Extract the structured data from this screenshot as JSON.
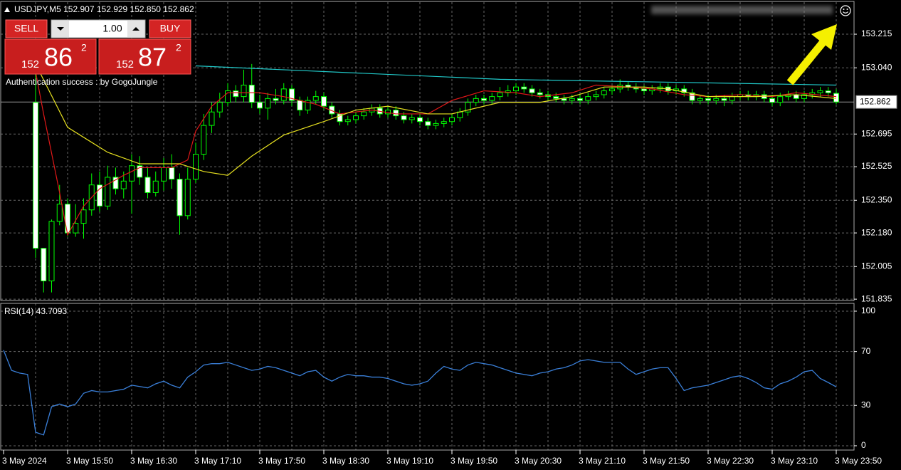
{
  "chart_data": {
    "type": "candlestick",
    "title": "USDJPY,M5  152.907 152.929 152.850 152.862",
    "categories": [
      "3 May 2024",
      null,
      null,
      null,
      null,
      null,
      null,
      null,
      "3 May 15:50",
      null,
      null,
      null,
      null,
      null,
      null,
      null,
      "3 May 16:30",
      null,
      null,
      null,
      null,
      null,
      null,
      null,
      "3 May 17:10",
      null,
      null,
      null,
      null,
      null,
      null,
      null,
      "3 May 17:50",
      null,
      null,
      null,
      null,
      null,
      null,
      null,
      "3 May 18:30",
      null,
      null,
      null,
      null,
      null,
      null,
      null,
      "3 May 19:10",
      null,
      null,
      null,
      null,
      null,
      null,
      null,
      "3 May 19:50",
      null,
      null,
      null,
      null,
      null,
      null,
      null,
      "3 May 20:30",
      null,
      null,
      null,
      null,
      null,
      null,
      null,
      "3 May 21:10",
      null,
      null,
      null,
      null,
      null,
      null,
      null,
      "3 May 21:50",
      null,
      null,
      null,
      null,
      null,
      null,
      null,
      "3 May 22:30",
      null,
      null,
      null,
      null,
      null,
      null,
      null,
      "3 May 23:10",
      null,
      null,
      null,
      null,
      null,
      null,
      null,
      "3 May 23:50"
    ],
    "open": [
      null,
      null,
      null,
      null,
      152.86,
      152.1,
      151.93,
      152.24,
      152.33,
      152.18,
      152.23,
      152.3,
      152.43,
      152.32,
      152.47,
      152.41,
      152.45,
      152.53,
      152.47,
      152.39,
      152.45,
      152.52,
      152.46,
      152.27,
      152.46,
      152.59,
      152.74,
      152.81,
      152.86,
      152.92,
      152.89,
      152.95,
      152.86,
      152.83,
      152.88,
      152.87,
      152.93,
      152.87,
      152.82,
      152.87,
      152.89,
      152.84,
      152.8,
      152.76,
      152.77,
      152.79,
      152.81,
      152.83,
      152.8,
      152.82,
      152.79,
      152.77,
      152.78,
      152.76,
      152.74,
      152.75,
      152.76,
      152.78,
      152.81,
      152.86,
      152.88,
      152.87,
      152.89,
      152.91,
      152.92,
      152.94,
      152.93,
      152.91,
      152.9,
      152.89,
      152.88,
      152.87,
      152.88,
      152.87,
      152.89,
      152.9,
      152.92,
      152.93,
      152.95,
      152.94,
      152.93,
      152.92,
      152.93,
      152.94,
      152.92,
      152.93,
      152.91,
      152.87,
      152.88,
      152.87,
      152.88,
      152.87,
      152.89,
      152.9,
      152.89,
      152.9,
      152.88,
      152.86,
      152.89,
      152.9,
      152.88,
      152.9,
      152.91,
      152.92,
      152.907
    ],
    "high": [
      null,
      null,
      null,
      null,
      153.03,
      152.1,
      152.25,
      152.43,
      152.36,
      152.33,
      152.36,
      152.49,
      152.5,
      152.53,
      152.52,
      152.5,
      152.59,
      152.58,
      152.52,
      152.5,
      152.57,
      152.59,
      152.49,
      152.52,
      152.65,
      152.8,
      152.86,
      152.91,
      152.96,
      152.95,
      153.03,
      153.06,
      152.9,
      152.91,
      152.93,
      152.96,
      152.95,
      152.89,
      152.89,
      152.92,
      152.91,
      152.86,
      152.82,
      152.79,
      152.81,
      152.83,
      152.85,
      152.85,
      152.84,
      152.84,
      152.81,
      152.8,
      152.8,
      152.78,
      152.77,
      152.78,
      152.8,
      152.83,
      152.88,
      152.9,
      152.9,
      152.91,
      152.94,
      152.95,
      152.96,
      152.96,
      152.95,
      152.93,
      152.92,
      152.91,
      152.9,
      152.9,
      152.9,
      152.91,
      152.92,
      152.94,
      152.95,
      152.98,
      152.97,
      152.96,
      152.95,
      152.95,
      152.96,
      152.96,
      152.95,
      152.95,
      152.93,
      152.9,
      152.9,
      152.9,
      152.9,
      152.91,
      152.92,
      152.92,
      152.92,
      152.92,
      152.9,
      152.91,
      152.92,
      152.92,
      152.92,
      152.93,
      152.94,
      152.94,
      152.929
    ],
    "low": [
      null,
      null,
      null,
      null,
      152.05,
      151.87,
      151.87,
      152.22,
      152.16,
      152.16,
      152.15,
      152.27,
      152.29,
      152.3,
      152.38,
      152.36,
      152.28,
      152.43,
      152.36,
      152.37,
      152.4,
      152.41,
      152.17,
      152.25,
      152.44,
      152.56,
      152.7,
      152.78,
      152.84,
      152.86,
      152.86,
      152.83,
      152.8,
      152.77,
      152.85,
      152.85,
      152.84,
      152.79,
      152.8,
      152.85,
      152.82,
      152.78,
      152.74,
      152.74,
      152.75,
      152.77,
      152.79,
      152.78,
      152.78,
      152.77,
      152.75,
      152.75,
      152.74,
      152.72,
      152.72,
      152.73,
      152.74,
      152.76,
      152.79,
      152.84,
      152.85,
      152.85,
      152.87,
      152.89,
      152.9,
      152.91,
      152.89,
      152.88,
      152.87,
      152.86,
      152.85,
      152.85,
      152.85,
      152.85,
      152.87,
      152.88,
      152.9,
      152.91,
      152.92,
      152.91,
      152.9,
      152.9,
      152.91,
      152.9,
      152.9,
      152.89,
      152.85,
      152.85,
      152.85,
      152.85,
      152.84,
      152.85,
      152.87,
      152.87,
      152.87,
      152.86,
      152.84,
      152.84,
      152.87,
      152.86,
      152.86,
      152.88,
      152.89,
      152.89,
      152.85
    ],
    "close": [
      null,
      null,
      null,
      null,
      152.1,
      151.93,
      152.24,
      152.33,
      152.18,
      152.23,
      152.3,
      152.43,
      152.32,
      152.47,
      152.41,
      152.45,
      152.53,
      152.47,
      152.39,
      152.45,
      152.52,
      152.46,
      152.27,
      152.46,
      152.59,
      152.74,
      152.81,
      152.86,
      152.92,
      152.89,
      152.95,
      152.86,
      152.83,
      152.88,
      152.87,
      152.93,
      152.87,
      152.82,
      152.87,
      152.89,
      152.84,
      152.8,
      152.76,
      152.77,
      152.79,
      152.81,
      152.83,
      152.8,
      152.82,
      152.79,
      152.77,
      152.78,
      152.76,
      152.74,
      152.75,
      152.76,
      152.78,
      152.81,
      152.86,
      152.88,
      152.87,
      152.89,
      152.91,
      152.92,
      152.94,
      152.93,
      152.91,
      152.9,
      152.89,
      152.88,
      152.87,
      152.88,
      152.87,
      152.89,
      152.9,
      152.92,
      152.93,
      152.95,
      152.94,
      152.93,
      152.92,
      152.93,
      152.94,
      152.92,
      152.93,
      152.91,
      152.87,
      152.88,
      152.87,
      152.88,
      152.87,
      152.89,
      152.9,
      152.89,
      152.9,
      152.88,
      152.86,
      152.89,
      152.9,
      152.88,
      152.9,
      152.91,
      152.92,
      152.91,
      152.862
    ],
    "bull_color": "#000000",
    "bear_color": "#ffffff",
    "wick_color": "#00ff00",
    "ylim": [
      151.828,
      153.382
    ],
    "yticks": [
      153.215,
      {
        "value": 153.04,
        "label": "153.040"
      },
      152.695,
      152.525,
      {
        "value": 152.35,
        "label": "152.350"
      },
      {
        "value": 152.18,
        "label": "152.180"
      },
      152.005,
      151.835
    ],
    "grid": true,
    "current_price": 152.862,
    "overlays": [
      {
        "color": "#e01818",
        "x": [
          4,
          5,
          7,
          8,
          10,
          12,
          15,
          17,
          21,
          23,
          24,
          26,
          28,
          32,
          35,
          39,
          42,
          46,
          49,
          53,
          56,
          60,
          64,
          67,
          71,
          74,
          78,
          81,
          85,
          88,
          92,
          96,
          99,
          104
        ],
        "values": [
          153.02,
          152.8,
          152.39,
          152.17,
          152.32,
          152.41,
          152.48,
          152.52,
          152.52,
          152.56,
          152.71,
          152.84,
          152.91,
          152.91,
          152.89,
          152.85,
          152.8,
          152.82,
          152.8,
          152.8,
          152.87,
          152.92,
          152.91,
          152.89,
          152.91,
          152.95,
          152.94,
          152.93,
          152.9,
          152.89,
          152.9,
          152.89,
          152.91,
          152.89
        ]
      },
      {
        "color": "#e6e020",
        "x": [
          4,
          8,
          13,
          17,
          22,
          25,
          28,
          31,
          35,
          40,
          44,
          48,
          53,
          56,
          62,
          67,
          71,
          75,
          80,
          83,
          88,
          94,
          99,
          104
        ],
        "values": [
          153.06,
          152.73,
          152.6,
          152.54,
          152.54,
          152.5,
          152.48,
          152.58,
          152.69,
          152.76,
          152.82,
          152.84,
          152.8,
          152.8,
          152.86,
          152.86,
          152.89,
          152.94,
          152.94,
          152.93,
          152.89,
          152.89,
          152.9,
          152.88
        ]
      },
      {
        "color": "#20c8c8",
        "x": [
          24,
          62,
          104
        ],
        "values": [
          153.05,
          152.98,
          152.95
        ]
      }
    ],
    "rsi": {
      "title": "RSI(14) 43.7093",
      "color": "#3a7fd8",
      "values": [
        71,
        56,
        54,
        53,
        10,
        8,
        29,
        31,
        29,
        31,
        39,
        41,
        40,
        40,
        41,
        42,
        45,
        44,
        43,
        46,
        48,
        45,
        43,
        51,
        55,
        60,
        61,
        61,
        62,
        60,
        58,
        56,
        57,
        59,
        58,
        56,
        54,
        52,
        55,
        56,
        51,
        48,
        51,
        53,
        52,
        52,
        51,
        51,
        50,
        48,
        46,
        45,
        46,
        48,
        54,
        59,
        57,
        56,
        60,
        62,
        61,
        60,
        58,
        56,
        54,
        53,
        52,
        54,
        55,
        57,
        58,
        60,
        63,
        64,
        63,
        62,
        62,
        62,
        57,
        53,
        55,
        57,
        58,
        58,
        50,
        41,
        43,
        44,
        45,
        47,
        49,
        51,
        52,
        50,
        47,
        43,
        42,
        46,
        48,
        51,
        55,
        56,
        50,
        47,
        43.7093
      ],
      "ylim": [
        -3.2,
        105.8
      ],
      "yticks": [
        100,
        70,
        30,
        0
      ]
    }
  },
  "trade_panel": {
    "sell": "SELL",
    "buy": "BUY",
    "lots": "1.00",
    "bid": {
      "big": "152",
      "main": "86",
      "small": "2"
    },
    "ask": {
      "big": "152",
      "main": "87",
      "small": "2"
    }
  },
  "status": "Authentication success : by GogoJungle"
}
